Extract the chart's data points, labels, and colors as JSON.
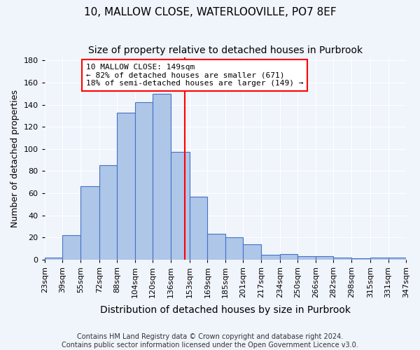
{
  "title1": "10, MALLOW CLOSE, WATERLOOVILLE, PO7 8EF",
  "title2": "Size of property relative to detached houses in Purbrook",
  "xlabel": "Distribution of detached houses by size in Purbrook",
  "ylabel": "Number of detached properties",
  "bin_labels": [
    "23sqm",
    "39sqm",
    "55sqm",
    "72sqm",
    "88sqm",
    "104sqm",
    "120sqm",
    "136sqm",
    "153sqm",
    "169sqm",
    "185sqm",
    "201sqm",
    "217sqm",
    "234sqm",
    "250sqm",
    "266sqm",
    "282sqm",
    "298sqm",
    "315sqm",
    "331sqm",
    "347sqm"
  ],
  "bar_heights": [
    2,
    22,
    66,
    85,
    133,
    142,
    150,
    97,
    57,
    23,
    20,
    14,
    4,
    5,
    3,
    3,
    2,
    1,
    2,
    2
  ],
  "bin_edges": [
    23,
    39,
    55,
    72,
    88,
    104,
    120,
    136,
    153,
    169,
    185,
    201,
    217,
    234,
    250,
    266,
    282,
    298,
    315,
    331,
    347
  ],
  "bar_color": "#aec6e8",
  "bar_edge_color": "#4472c4",
  "property_line_x": 149,
  "property_line_color": "red",
  "annotation_text": "10 MALLOW CLOSE: 149sqm\n← 82% of detached houses are smaller (671)\n18% of semi-detached houses are larger (149) →",
  "annotation_box_color": "white",
  "annotation_box_edge": "red",
  "ylim": [
    0,
    183
  ],
  "yticks": [
    0,
    20,
    40,
    60,
    80,
    100,
    120,
    140,
    160,
    180
  ],
  "footer1": "Contains HM Land Registry data © Crown copyright and database right 2024.",
  "footer2": "Contains public sector information licensed under the Open Government Licence v3.0.",
  "background_color": "#f0f4fb",
  "grid_color": "#ffffff",
  "title1_fontsize": 11,
  "title2_fontsize": 10,
  "axis_label_fontsize": 9,
  "tick_fontsize": 8,
  "annotation_fontsize": 8,
  "footer_fontsize": 7
}
